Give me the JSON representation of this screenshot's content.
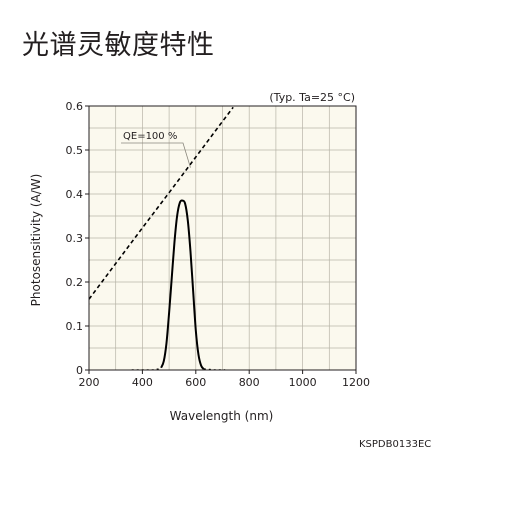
{
  "page": {
    "title": "光谱灵敏度特性",
    "doc_code": "KSPDB0133EC"
  },
  "chart_data": {
    "type": "line",
    "title": "光谱灵敏度特性",
    "condition": "(Typ. Ta=25 °C)",
    "xlabel": "Wavelength (nm)",
    "ylabel": "Photosensitivity (A/W)",
    "xlim": [
      200,
      1200
    ],
    "ylim": [
      0,
      0.6
    ],
    "x_ticks": [
      200,
      400,
      600,
      800,
      1000,
      1200
    ],
    "y_ticks": [
      0,
      0.1,
      0.2,
      0.3,
      0.4,
      0.5,
      0.6
    ],
    "y_tick_labels": [
      "0",
      "0.1",
      "0.2",
      "0.3",
      "0.4",
      "0.5",
      "0.6"
    ],
    "x_minor_step": 100,
    "y_minor_step": 0.05,
    "grid": true,
    "background_color": "#fbf9ee",
    "grid_color": "#b7b4a7",
    "line_color": "#000000",
    "annotations": [
      {
        "text": "QE=100 %",
        "points_to_x": 580,
        "points_to_y": 0.46
      }
    ],
    "series": [
      {
        "name": "QE=100 %",
        "style": "dashed",
        "x": [
          200,
          300,
          400,
          500,
          600,
          700,
          740
        ],
        "y": [
          0.161,
          0.242,
          0.323,
          0.403,
          0.484,
          0.565,
          0.597
        ]
      },
      {
        "name": "",
        "style": "solid",
        "x": [
          470,
          480,
          490,
          500,
          510,
          520,
          530,
          540,
          550,
          560,
          570,
          580,
          590,
          600,
          610,
          620,
          630
        ],
        "y": [
          0.005,
          0.02,
          0.06,
          0.13,
          0.21,
          0.29,
          0.35,
          0.38,
          0.385,
          0.378,
          0.34,
          0.27,
          0.18,
          0.09,
          0.035,
          0.01,
          0.002
        ]
      },
      {
        "name": "",
        "style": "dotted",
        "x": [
          360,
          400,
          440,
          460,
          470
        ],
        "y": [
          0.0,
          0.0,
          0.0,
          0.002,
          0.005
        ]
      },
      {
        "name": "",
        "style": "dotted",
        "x": [
          630,
          650,
          670,
          690,
          710
        ],
        "y": [
          0.002,
          0.001,
          0.0,
          0.0,
          0.0
        ]
      }
    ]
  }
}
